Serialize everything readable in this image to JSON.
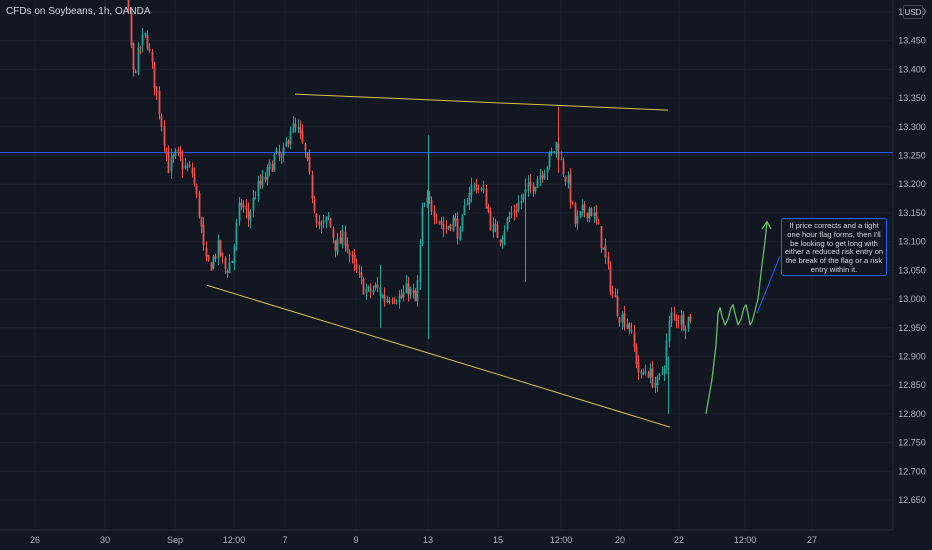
{
  "header": {
    "title": "CFDs on Soybeans, 1h, OANDA",
    "currency_button": "USD"
  },
  "chart_data": {
    "type": "candlestick",
    "title": "CFDs on Soybeans, 1h, OANDA",
    "symbol": "CFDs on Soybeans",
    "interval": "1h",
    "source": "OANDA",
    "ylim": [
      12.628,
      13.565
    ],
    "yticks": [
      "13.500",
      "13.450",
      "13.400",
      "13.350",
      "13.300",
      "13.250",
      "13.200",
      "13.150",
      "13.100",
      "13.050",
      "13.000",
      "12.950",
      "12.900",
      "12.850",
      "12.800",
      "12.750",
      "12.700",
      "12.650"
    ],
    "x_ticks": [
      "26",
      "30",
      "Sep",
      "12:00",
      "7",
      "9",
      "13",
      "15",
      "12:00",
      "20",
      "22",
      "12:00",
      "27"
    ],
    "horizontal_level": 13.255,
    "waypoints": [
      [
        85,
        13.62
      ],
      [
        92,
        13.53
      ],
      [
        100,
        13.6
      ],
      [
        110,
        13.64
      ],
      [
        125,
        13.56
      ],
      [
        133,
        13.39
      ],
      [
        140,
        13.44
      ],
      [
        146,
        13.46
      ],
      [
        152,
        13.4
      ],
      [
        160,
        13.32
      ],
      [
        168,
        13.23
      ],
      [
        176,
        13.25
      ],
      [
        184,
        13.23
      ],
      [
        192,
        13.22
      ],
      [
        200,
        13.14
      ],
      [
        205,
        13.06
      ],
      [
        210,
        13.06
      ],
      [
        218,
        13.09
      ],
      [
        225,
        13.05
      ],
      [
        232,
        13.07
      ],
      [
        240,
        13.17
      ],
      [
        248,
        13.14
      ],
      [
        256,
        13.19
      ],
      [
        265,
        13.21
      ],
      [
        275,
        13.25
      ],
      [
        282,
        13.24
      ],
      [
        290,
        13.3
      ],
      [
        298,
        13.29
      ],
      [
        305,
        13.25
      ],
      [
        313,
        13.17
      ],
      [
        320,
        13.12
      ],
      [
        328,
        13.14
      ],
      [
        336,
        13.09
      ],
      [
        344,
        13.11
      ],
      [
        352,
        13.06
      ],
      [
        360,
        13.03
      ],
      [
        368,
        13.01
      ],
      [
        376,
        13.02
      ],
      [
        384,
        13.0
      ],
      [
        392,
        13.01
      ],
      [
        400,
        13.0
      ],
      [
        408,
        13.02
      ],
      [
        416,
        12.99
      ],
      [
        422,
        13.15
      ],
      [
        428,
        13.17
      ],
      [
        436,
        13.15
      ],
      [
        444,
        13.12
      ],
      [
        452,
        13.14
      ],
      [
        460,
        13.11
      ],
      [
        468,
        13.19
      ],
      [
        476,
        13.2
      ],
      [
        484,
        13.18
      ],
      [
        492,
        13.12
      ],
      [
        500,
        13.11
      ],
      [
        508,
        13.14
      ],
      [
        516,
        13.16
      ],
      [
        524,
        13.18
      ],
      [
        532,
        13.2
      ],
      [
        540,
        13.22
      ],
      [
        548,
        13.24
      ],
      [
        556,
        13.27
      ],
      [
        562,
        13.23
      ],
      [
        568,
        13.2
      ],
      [
        575,
        13.13
      ],
      [
        582,
        13.15
      ],
      [
        590,
        13.16
      ],
      [
        598,
        13.12
      ],
      [
        605,
        13.07
      ],
      [
        612,
        13.01
      ],
      [
        620,
        12.97
      ],
      [
        628,
        12.96
      ],
      [
        634,
        12.91
      ],
      [
        640,
        12.86
      ],
      [
        646,
        12.88
      ],
      [
        652,
        12.86
      ],
      [
        658,
        12.85
      ],
      [
        664,
        12.89
      ],
      [
        670,
        12.97
      ],
      [
        676,
        12.97
      ],
      [
        684,
        12.96
      ],
      [
        690,
        12.97
      ]
    ],
    "drawings": {
      "upper_trendline": [
        [
          295,
          13.357
        ],
        [
          668,
          13.329
        ]
      ],
      "lower_trendline": [
        [
          207,
          13.024
        ],
        [
          670,
          12.777
        ]
      ],
      "projection_path": [
        [
          706,
          12.8
        ],
        [
          712,
          12.86
        ],
        [
          716,
          12.92
        ],
        [
          718,
          12.975
        ],
        [
          720,
          12.985
        ],
        [
          722,
          12.97
        ],
        [
          725,
          12.955
        ],
        [
          728,
          12.965
        ],
        [
          731,
          12.985
        ],
        [
          733,
          12.99
        ],
        [
          735,
          12.975
        ],
        [
          738,
          12.955
        ],
        [
          741,
          12.965
        ],
        [
          744,
          12.985
        ],
        [
          746,
          12.99
        ],
        [
          748,
          12.975
        ],
        [
          750,
          12.955
        ],
        [
          752,
          12.96
        ],
        [
          755,
          12.98
        ],
        [
          758,
          13.0
        ],
        [
          762,
          13.06
        ],
        [
          765,
          13.1
        ],
        [
          767,
          13.135
        ]
      ],
      "projection_arrowhead": [
        [
          762,
          13.122
        ],
        [
          767,
          13.135
        ],
        [
          771,
          13.122
        ]
      ],
      "callout_connector": [
        [
          780,
          13.075
        ],
        [
          757,
          12.975
        ]
      ]
    },
    "annotation_text": "If price corrects and a tight one hour flag forms, then I'll be looking to get long with either a reduced risk entry on the break of the flag or a risk entry within it."
  },
  "colors": {
    "background": "#131722",
    "grid": "#1e222d",
    "axis_text": "#b2b5be",
    "up": "#26a69a",
    "down": "#ef5350",
    "horizontal_level": "#2962ff",
    "trendline": "#d6c44b",
    "projection": "#66bb6a",
    "callout_border": "#2962ff"
  }
}
